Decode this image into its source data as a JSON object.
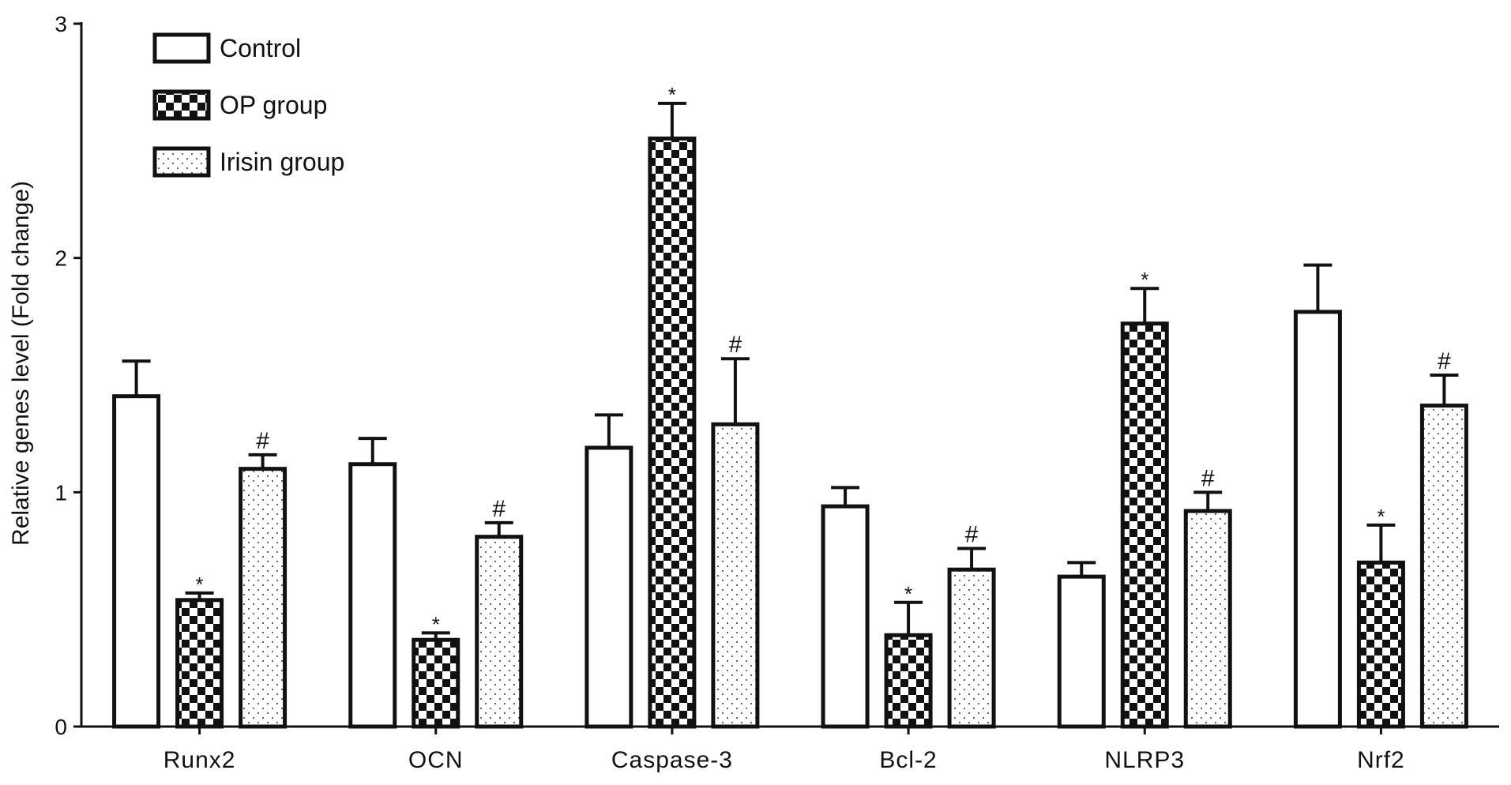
{
  "chart_data": {
    "type": "bar",
    "title": "",
    "xlabel": "",
    "ylabel": "Relative genes level (Fold change)",
    "ylim": [
      0,
      3
    ],
    "yticks": [
      0,
      1,
      2,
      3
    ],
    "grid": false,
    "legend_position": "top-left",
    "categories": [
      "Runx2",
      "OCN",
      "Caspase-3",
      "Bcl-2",
      "NLRP3",
      "Nrf2"
    ],
    "series": [
      {
        "name": "Control",
        "pattern": "plain",
        "values": [
          1.41,
          1.12,
          1.19,
          0.94,
          0.64,
          1.77
        ],
        "errors": [
          0.15,
          0.11,
          0.14,
          0.08,
          0.06,
          0.2
        ],
        "annotations": [
          "",
          "",
          "",
          "",
          "",
          ""
        ]
      },
      {
        "name": "OP group",
        "pattern": "checker",
        "values": [
          0.54,
          0.37,
          2.51,
          0.39,
          1.72,
          0.7
        ],
        "errors": [
          0.03,
          0.03,
          0.15,
          0.14,
          0.15,
          0.16
        ],
        "annotations": [
          "*",
          "*",
          "*",
          "*",
          "*",
          "*"
        ]
      },
      {
        "name": "Irisin group",
        "pattern": "dotted",
        "values": [
          1.1,
          0.81,
          1.29,
          0.67,
          0.92,
          1.37
        ],
        "errors": [
          0.06,
          0.06,
          0.28,
          0.09,
          0.08,
          0.13
        ],
        "annotations": [
          "#",
          "#",
          "#",
          "#",
          "#",
          "#"
        ]
      }
    ],
    "colors": {
      "stroke": "#111111",
      "fill_plain": "#ffffff",
      "checker": "#111111",
      "dots": "#555555"
    }
  }
}
